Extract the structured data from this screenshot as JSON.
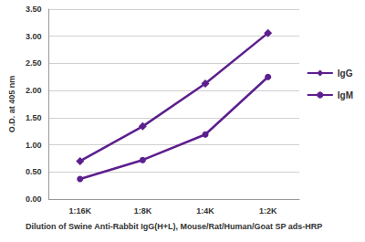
{
  "chart_data": {
    "type": "line",
    "x_label": "Dilution of Swine Anti-Rabbit IgG(H+L), Mouse/Rat/Human/Goat SP ads-HRP",
    "y_label": "O.D. at 405 nm",
    "categories": [
      "1:16K",
      "1:8K",
      "1:4K",
      "1:2K"
    ],
    "series": [
      {
        "name": "IgG",
        "color": "#5c1f8e",
        "marker": "diamond",
        "values": [
          0.7,
          1.34,
          2.13,
          3.06
        ]
      },
      {
        "name": "IgM",
        "color": "#5c1f8e",
        "marker": "circle",
        "values": [
          0.37,
          0.72,
          1.19,
          2.25
        ]
      }
    ],
    "ylim": [
      0,
      3.5
    ],
    "yticks": [
      {
        "value": 0,
        "label": "0.00"
      },
      {
        "value": 0.5,
        "label": "0.50"
      },
      {
        "value": 1,
        "label": "1.00"
      },
      {
        "value": 1.5,
        "label": "1.50"
      },
      {
        "value": 2,
        "label": "2.00"
      },
      {
        "value": 2.5,
        "label": "2.50"
      },
      {
        "value": 3,
        "label": "3.00"
      },
      {
        "value": 3.5,
        "label": "3.50"
      }
    ],
    "grid": true,
    "legend": "right"
  }
}
